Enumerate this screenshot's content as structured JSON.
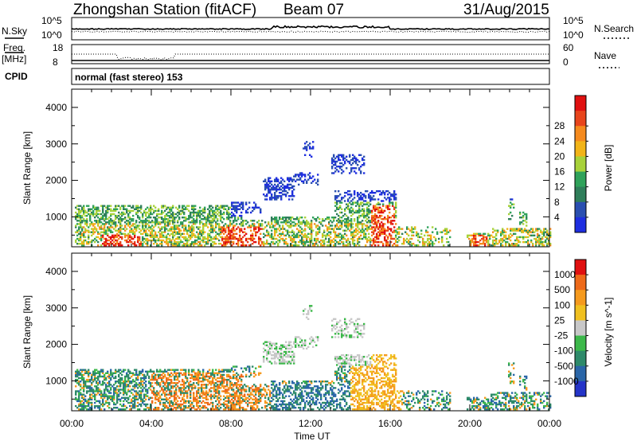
{
  "header": {
    "station": "Zhongshan Station (fitACF)",
    "beam": "Beam 07",
    "date": "31/Aug/2015"
  },
  "summary_panels": {
    "nsky_label": "N.Sky",
    "nsky_ticks": [
      "10^5",
      "10^0"
    ],
    "nsearch_label": "N.Search",
    "nsearch_ticks": [
      "10^5",
      "10^0"
    ],
    "freq_label": "Freq.",
    "freq_unit": "[MHz]",
    "freq_ticks": [
      "18",
      "8"
    ],
    "nave_label": "Nave",
    "nave_ticks": [
      "60",
      "0"
    ],
    "cpid_label": "CPID",
    "cpid_text": "normal (fast stereo) 153"
  },
  "xaxis": {
    "label": "Time UT",
    "ticks": [
      "00:00",
      "04:00",
      "08:00",
      "12:00",
      "16:00",
      "20:00",
      "00:00"
    ]
  },
  "colors": {
    "frame": "#000000",
    "background": "#ffffff"
  },
  "chart_data": [
    {
      "type": "heatmap",
      "name": "power",
      "ylabel": "Slant Range [km]",
      "yticks": [
        "1000",
        "2000",
        "3000",
        "4000"
      ],
      "ylim": [
        180,
        4500
      ],
      "xlim": [
        0,
        24
      ],
      "colorbar_label": "Power [dB]",
      "colorbar_ticks": [
        "4",
        "8",
        "12",
        "16",
        "20",
        "24",
        "28"
      ],
      "colorbar_colors": [
        "#1e2ee0",
        "#2a4fb0",
        "#2f7e5a",
        "#2fa25a",
        "#a8d23a",
        "#f2b418",
        "#f58a1e",
        "#e8451c",
        "#e01010"
      ],
      "value_range": [
        0,
        30
      ]
    },
    {
      "type": "heatmap",
      "name": "velocity",
      "ylabel": "Slant Range [km]",
      "yticks": [
        "1000",
        "2000",
        "3000",
        "4000"
      ],
      "ylim": [
        180,
        4500
      ],
      "xlim": [
        0,
        24
      ],
      "colorbar_label": "Velocity [m s^-1]",
      "colorbar_ticks": [
        "1000",
        "500",
        "100",
        "25",
        "-25",
        "-100",
        "-500",
        "-1000"
      ],
      "colorbar_colors": [
        "#2434c8",
        "#2a66a8",
        "#2e8a6a",
        "#3cb84a",
        "#c8c8c8",
        "#f0c020",
        "#f59a1e",
        "#ee6a1a",
        "#e01010"
      ],
      "value_range": [
        -1000,
        1000
      ]
    }
  ]
}
